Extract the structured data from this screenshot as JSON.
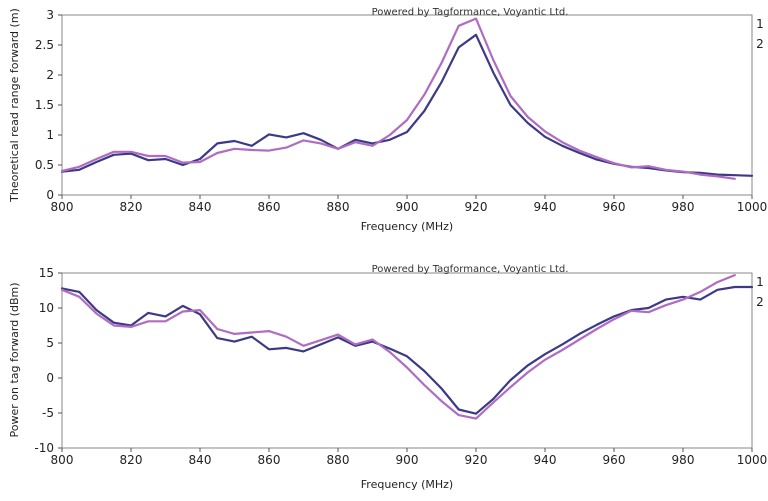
{
  "chart_data": [
    {
      "type": "line",
      "watermark": "Powered by Tagformance, Voyantic Ltd.",
      "xlabel": "Frequency (MHz)",
      "ylabel": "Theoretical read range forward (m)",
      "xlim": [
        800,
        1000
      ],
      "ylim": [
        0,
        3
      ],
      "xticks": [
        800,
        820,
        840,
        860,
        880,
        900,
        920,
        940,
        960,
        980,
        1000
      ],
      "yticks": [
        0,
        0.5,
        1,
        1.5,
        2,
        2.5,
        3
      ],
      "ytick_labels": [
        "0",
        "0.5",
        "1",
        "1.5",
        "2",
        "2.5",
        "3"
      ],
      "grid": false,
      "legend_position": "right",
      "series": [
        {
          "name": "1",
          "color": "#3c3a86",
          "x": [
            800,
            805,
            810,
            815,
            820,
            825,
            830,
            835,
            840,
            845,
            850,
            855,
            860,
            865,
            870,
            875,
            880,
            885,
            890,
            895,
            900,
            905,
            910,
            915,
            920,
            925,
            930,
            935,
            940,
            945,
            950,
            955,
            960,
            965,
            970,
            975,
            980,
            985,
            990,
            995,
            1000
          ],
          "values": [
            0.39,
            0.42,
            0.55,
            0.67,
            0.69,
            0.58,
            0.6,
            0.5,
            0.6,
            0.86,
            0.9,
            0.82,
            1.01,
            0.96,
            1.03,
            0.92,
            0.77,
            0.92,
            0.86,
            0.92,
            1.05,
            1.4,
            1.88,
            2.46,
            2.67,
            2.04,
            1.5,
            1.2,
            0.97,
            0.82,
            0.7,
            0.59,
            0.52,
            0.47,
            0.45,
            0.41,
            0.38,
            0.37,
            0.34,
            0.33,
            0.32
          ]
        },
        {
          "name": "2",
          "color": "#b06cc2",
          "x": [
            800,
            805,
            810,
            815,
            820,
            825,
            830,
            835,
            840,
            845,
            850,
            855,
            860,
            865,
            870,
            875,
            880,
            885,
            890,
            895,
            900,
            905,
            910,
            915,
            920,
            925,
            930,
            935,
            940,
            945,
            950,
            955,
            960,
            965,
            970,
            975,
            980,
            985,
            990,
            995
          ],
          "values": [
            0.4,
            0.47,
            0.6,
            0.72,
            0.72,
            0.65,
            0.65,
            0.54,
            0.55,
            0.7,
            0.77,
            0.75,
            0.74,
            0.79,
            0.91,
            0.86,
            0.77,
            0.88,
            0.82,
            1.0,
            1.25,
            1.67,
            2.2,
            2.82,
            2.94,
            2.25,
            1.65,
            1.3,
            1.06,
            0.88,
            0.74,
            0.63,
            0.53,
            0.46,
            0.48,
            0.42,
            0.39,
            0.34,
            0.31,
            0.27
          ]
        }
      ]
    },
    {
      "type": "line",
      "watermark": "Powered by Tagformance, Voyantic Ltd.",
      "xlabel": "Frequency (MHz)",
      "ylabel": "Power on tag forward (dBm)",
      "xlim": [
        800,
        1000
      ],
      "ylim": [
        -10,
        15
      ],
      "xticks": [
        800,
        820,
        840,
        860,
        880,
        900,
        920,
        940,
        960,
        980,
        1000
      ],
      "yticks": [
        -10,
        -5,
        0,
        5,
        10,
        15
      ],
      "ytick_labels": [
        "-10",
        "-5",
        "0",
        "5",
        "10",
        "15"
      ],
      "grid": false,
      "legend_position": "right",
      "series": [
        {
          "name": "1",
          "color": "#3c3a86",
          "x": [
            800,
            805,
            810,
            815,
            820,
            825,
            830,
            835,
            840,
            845,
            850,
            855,
            860,
            865,
            870,
            875,
            880,
            885,
            890,
            895,
            900,
            905,
            910,
            915,
            920,
            925,
            930,
            935,
            940,
            945,
            950,
            955,
            960,
            965,
            970,
            975,
            980,
            985,
            990,
            995,
            1000
          ],
          "values": [
            12.8,
            12.3,
            9.7,
            7.9,
            7.5,
            9.3,
            8.8,
            10.3,
            9.1,
            5.7,
            5.2,
            5.9,
            4.1,
            4.3,
            3.8,
            4.8,
            5.8,
            4.6,
            5.2,
            4.2,
            3.1,
            1.0,
            -1.5,
            -4.5,
            -5.1,
            -3.0,
            -0.3,
            1.8,
            3.4,
            4.8,
            6.3,
            7.6,
            8.8,
            9.7,
            10.0,
            11.2,
            11.6,
            11.2,
            12.6,
            13.0,
            13.0
          ]
        },
        {
          "name": "2",
          "color": "#b06cc2",
          "x": [
            800,
            805,
            810,
            815,
            820,
            825,
            830,
            835,
            840,
            845,
            850,
            855,
            860,
            865,
            870,
            875,
            880,
            885,
            890,
            895,
            900,
            905,
            910,
            915,
            920,
            925,
            930,
            935,
            940,
            945,
            950,
            955,
            960,
            965,
            970,
            975,
            980,
            985,
            990,
            995
          ],
          "values": [
            12.6,
            11.6,
            9.2,
            7.5,
            7.3,
            8.1,
            8.1,
            9.5,
            9.7,
            7.0,
            6.3,
            6.5,
            6.7,
            5.9,
            4.6,
            5.4,
            6.2,
            4.8,
            5.5,
            3.7,
            1.5,
            -1.0,
            -3.3,
            -5.3,
            -5.8,
            -3.5,
            -1.3,
            0.8,
            2.6,
            4.0,
            5.5,
            7.0,
            8.4,
            9.6,
            9.4,
            10.4,
            11.2,
            12.3,
            13.7,
            14.7
          ]
        }
      ]
    }
  ]
}
